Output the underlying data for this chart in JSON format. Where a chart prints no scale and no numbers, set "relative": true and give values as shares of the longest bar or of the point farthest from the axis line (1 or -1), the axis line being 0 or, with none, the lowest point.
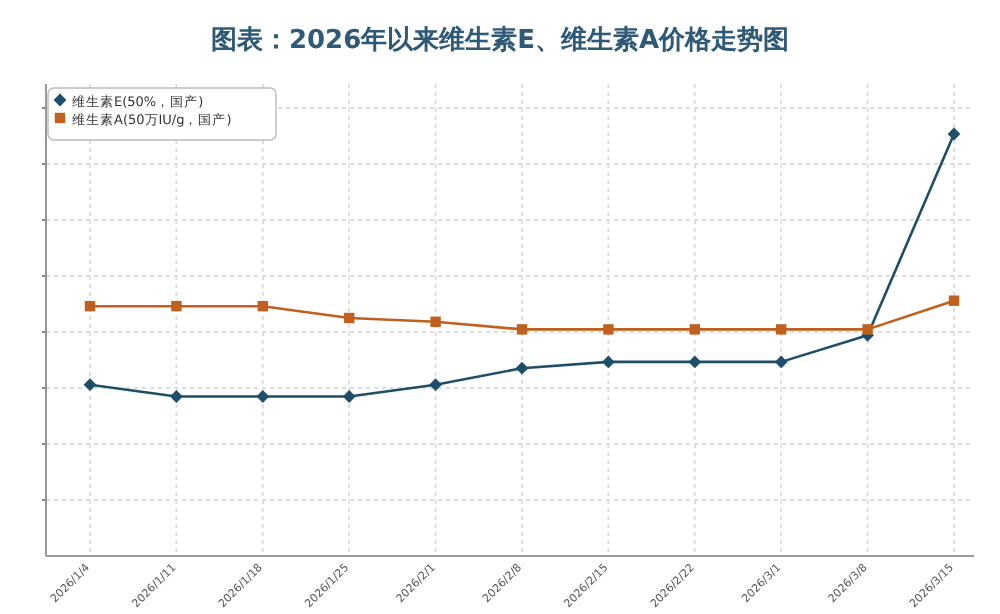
{
  "chart_data": {
    "type": "line",
    "title": "图表：2026年以来维生素E、维生素A价格走势图",
    "categories": [
      "2026/1/4",
      "2026/1/11",
      "2026/1/18",
      "2026/1/25",
      "2026/2/1",
      "2026/2/8",
      "2026/2/15",
      "2026/2/22",
      "2026/3/1",
      "2026/3/8",
      "2026/3/15"
    ],
    "relative": true,
    "grid": true,
    "legend": "top left",
    "series": [
      {
        "name": "维生素E(50%，国产)",
        "color": "#1f4e6b",
        "marker": "diamond",
        "values": [
          0.406,
          0.378,
          0.378,
          0.378,
          0.406,
          0.445,
          0.46,
          0.46,
          0.46,
          0.523,
          1
        ]
      },
      {
        "name": "维生素A(50万IU/g，国产)",
        "color": "#c0601e",
        "marker": "square",
        "values": [
          0.592,
          0.592,
          0.592,
          0.564,
          0.555,
          0.537,
          0.537,
          0.537,
          0.537,
          0.537,
          0.605
        ]
      }
    ]
  }
}
